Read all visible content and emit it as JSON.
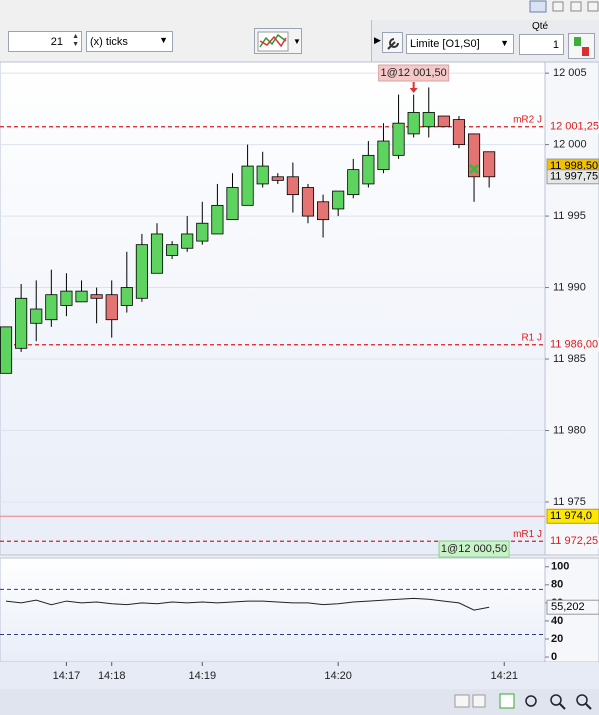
{
  "toolbar": {
    "period": "21",
    "unit": "(x) ticks",
    "order_type": "Limite [O1,S0]",
    "qty_label": "Qté",
    "qty": "1"
  },
  "chart_data": [
    {
      "type": "candlestick",
      "open": [
        11984.0,
        11985.75,
        11987.5,
        11987.75,
        11988.75,
        11989.0,
        11989.5,
        11989.5,
        11988.75,
        11989.25,
        11991.0,
        11992.25,
        11992.75,
        11993.25,
        11993.75,
        11994.75,
        11995.75,
        11997.25,
        11997.75,
        11997.75,
        11997.0,
        11996.0,
        11995.5,
        11996.5,
        11997.25,
        11998.25,
        11999.25,
        12000.75,
        12001.25,
        12002.0,
        12001.75,
        12000.75,
        11999.5
      ],
      "high": [
        11987.25,
        11990.25,
        11990.5,
        11991.25,
        11991.0,
        11990.5,
        11990.0,
        11990.5,
        11992.5,
        11993.75,
        11994.5,
        11993.25,
        11995.0,
        11996.0,
        11997.25,
        11998.0,
        12000.0,
        11999.5,
        11998.0,
        11998.75,
        11997.25,
        11996.5,
        11996.75,
        11999.0,
        12000.25,
        12001.5,
        12003.5,
        12003.5,
        12004.0,
        12002.0,
        12002.0,
        12000.75,
        11999.5
      ],
      "low": [
        11984.0,
        11985.5,
        11986.25,
        11987.25,
        11988.0,
        11989.0,
        11987.5,
        11986.5,
        11988.25,
        11989.0,
        11991.0,
        11992.0,
        11992.5,
        11993.0,
        11993.75,
        11994.75,
        11995.75,
        11997.0,
        11997.25,
        11995.25,
        11994.5,
        11993.5,
        11995.0,
        11996.25,
        11997.0,
        11998.0,
        11999.0,
        12000.5,
        12000.5,
        12001.25,
        11999.75,
        11996.0,
        11997.0
      ],
      "close": [
        11987.25,
        11989.25,
        11988.5,
        11989.5,
        11989.75,
        11989.75,
        11989.25,
        11987.75,
        11990.0,
        11993.0,
        11993.75,
        11993.0,
        11993.75,
        11994.5,
        11995.75,
        11997.0,
        11998.5,
        11998.5,
        11997.5,
        11996.5,
        11995.0,
        11994.75,
        11996.75,
        11998.25,
        11999.25,
        12000.25,
        12001.5,
        12002.25,
        12002.25,
        12001.25,
        12000.0,
        11997.75,
        11997.75
      ],
      "up_color": "#5fd35f",
      "down_color": "#e47474",
      "ylim": [
        11971.5,
        12005.5
      ],
      "yticks": [
        {
          "value": 12005,
          "label": "12 005"
        },
        {
          "value": 12000,
          "label": "12 000"
        },
        {
          "value": 11995,
          "label": "11 995"
        },
        {
          "value": 11990,
          "label": "11 990"
        },
        {
          "value": 11985,
          "label": "11 985"
        },
        {
          "value": 11980,
          "label": "11 980"
        },
        {
          "value": 11975,
          "label": "11 975"
        }
      ],
      "xlim": [
        -0.4,
        35.7
      ],
      "xticks": [
        {
          "value": 4,
          "label": "14:17"
        },
        {
          "value": 7,
          "label": "14:18"
        },
        {
          "value": 13,
          "label": "14:19"
        },
        {
          "value": 22,
          "label": "14:20"
        },
        {
          "value": 33,
          "label": "14:21"
        }
      ],
      "grid": true,
      "levels": [
        {
          "name": "mR2 J",
          "value": 12001.25,
          "label": "12 001,25",
          "color": "#e01c1c",
          "dashed": true
        },
        {
          "name": "R1 J",
          "value": 11986.0,
          "label": "11 986,00",
          "color": "#e01c1c",
          "dashed": true
        },
        {
          "value": 11974.0,
          "label": "11 974,0",
          "color": "#f08080",
          "dashed": false,
          "tag_color": "#ffe600"
        },
        {
          "name": "mR1 J",
          "value": 11972.25,
          "label": "11 972,25",
          "color": "#e01c1c",
          "dashed": true
        }
      ],
      "price_tags": [
        {
          "value": 11998.5,
          "label": "11 998,50",
          "color": "#f2c200"
        },
        {
          "value": 11997.75,
          "label": "11 997,75",
          "color": "#e6e6e6"
        }
      ],
      "orders": [
        {
          "label": "1@12 001,50",
          "index": 27,
          "side": "sell",
          "color": "#f6c9c9"
        },
        {
          "label": "1@12 000,50",
          "index": 31,
          "side": "buy",
          "color": "#c9f2c9"
        }
      ]
    },
    {
      "type": "line",
      "values": [
        62,
        60,
        63,
        58,
        62,
        60,
        61,
        59,
        58,
        60,
        59,
        61,
        60,
        61,
        60,
        61,
        62,
        62,
        61,
        60,
        60,
        58,
        59,
        61,
        62,
        63,
        64,
        65,
        64,
        62,
        60,
        52,
        55.202
      ],
      "value_label": "55,202",
      "color": "#222222",
      "ylim": [
        -5.5,
        107.5
      ],
      "yticks": [
        0,
        20,
        40,
        60,
        80,
        100
      ],
      "levels": [
        75,
        25
      ]
    }
  ]
}
